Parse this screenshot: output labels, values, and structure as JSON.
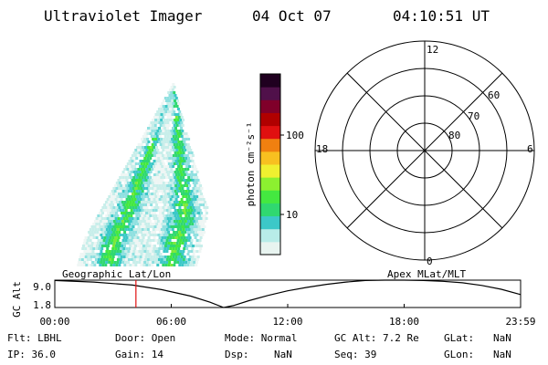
{
  "header": {
    "instrument": "Ultraviolet Imager",
    "date": "04 Oct 07",
    "time": "04:10:51 UT"
  },
  "colorbar": {
    "unit_label": "photon cm⁻²s⁻¹",
    "ticks": [
      "100",
      "10"
    ],
    "colors": [
      "#e8f4f0",
      "#b8ece8",
      "#3cc8c8",
      "#30d870",
      "#44e840",
      "#8cf030",
      "#f0f030",
      "#f8c020",
      "#f08010",
      "#e01010",
      "#b00000",
      "#80002a",
      "#50104a",
      "#200020"
    ]
  },
  "polar": {
    "mlt_labels": {
      "top": "12",
      "left": "18",
      "right": "6",
      "bottom": "0"
    },
    "lat_labels": [
      "60",
      "70",
      "80"
    ]
  },
  "timeline": {
    "y_axis_label": "GC Alt",
    "y_ticks": [
      "9.0",
      "1.8"
    ],
    "left_title": "Geographic Lat/Lon",
    "right_title": "Apex  MLat/MLT",
    "x_ticks": [
      "00:00",
      "06:00",
      "12:00",
      "18:00",
      "23:59"
    ]
  },
  "chart_data": {
    "type": "line",
    "title": "",
    "xlabel": "",
    "ylabel": "GC Alt",
    "xlim": [
      0,
      24
    ],
    "ylim": [
      1.8,
      9.0
    ],
    "current_time_hours": 4.18,
    "series": [
      {
        "name": "",
        "x": [
          0,
          2,
          4,
          5.5,
          7,
          8,
          8.7,
          9.2,
          10,
          11,
          12,
          13,
          14,
          15,
          16,
          17,
          18,
          19,
          20,
          21,
          22,
          23,
          24
        ],
        "y": [
          8.9,
          8.5,
          7.7,
          6.5,
          4.8,
          3.2,
          1.8,
          2.3,
          3.6,
          5.0,
          6.2,
          7.1,
          7.9,
          8.5,
          8.9,
          9.0,
          9.0,
          8.9,
          8.7,
          8.3,
          7.6,
          6.6,
          5.2
        ]
      }
    ]
  },
  "info": {
    "filter": "Flt: LBHL",
    "door": "Door: Open",
    "mode": "Mode: Normal",
    "gc_alt": "GC Alt: 7.2 Re",
    "glat_label": "GLat:",
    "glat_value": "NaN",
    "ip": "IP: 36.0",
    "gain": "Gain: 14",
    "dsp_label": "Dsp:",
    "dsp_value": "NaN",
    "seq": "Seq: 39",
    "glon_label": "GLon:",
    "glon_value": "NaN"
  }
}
